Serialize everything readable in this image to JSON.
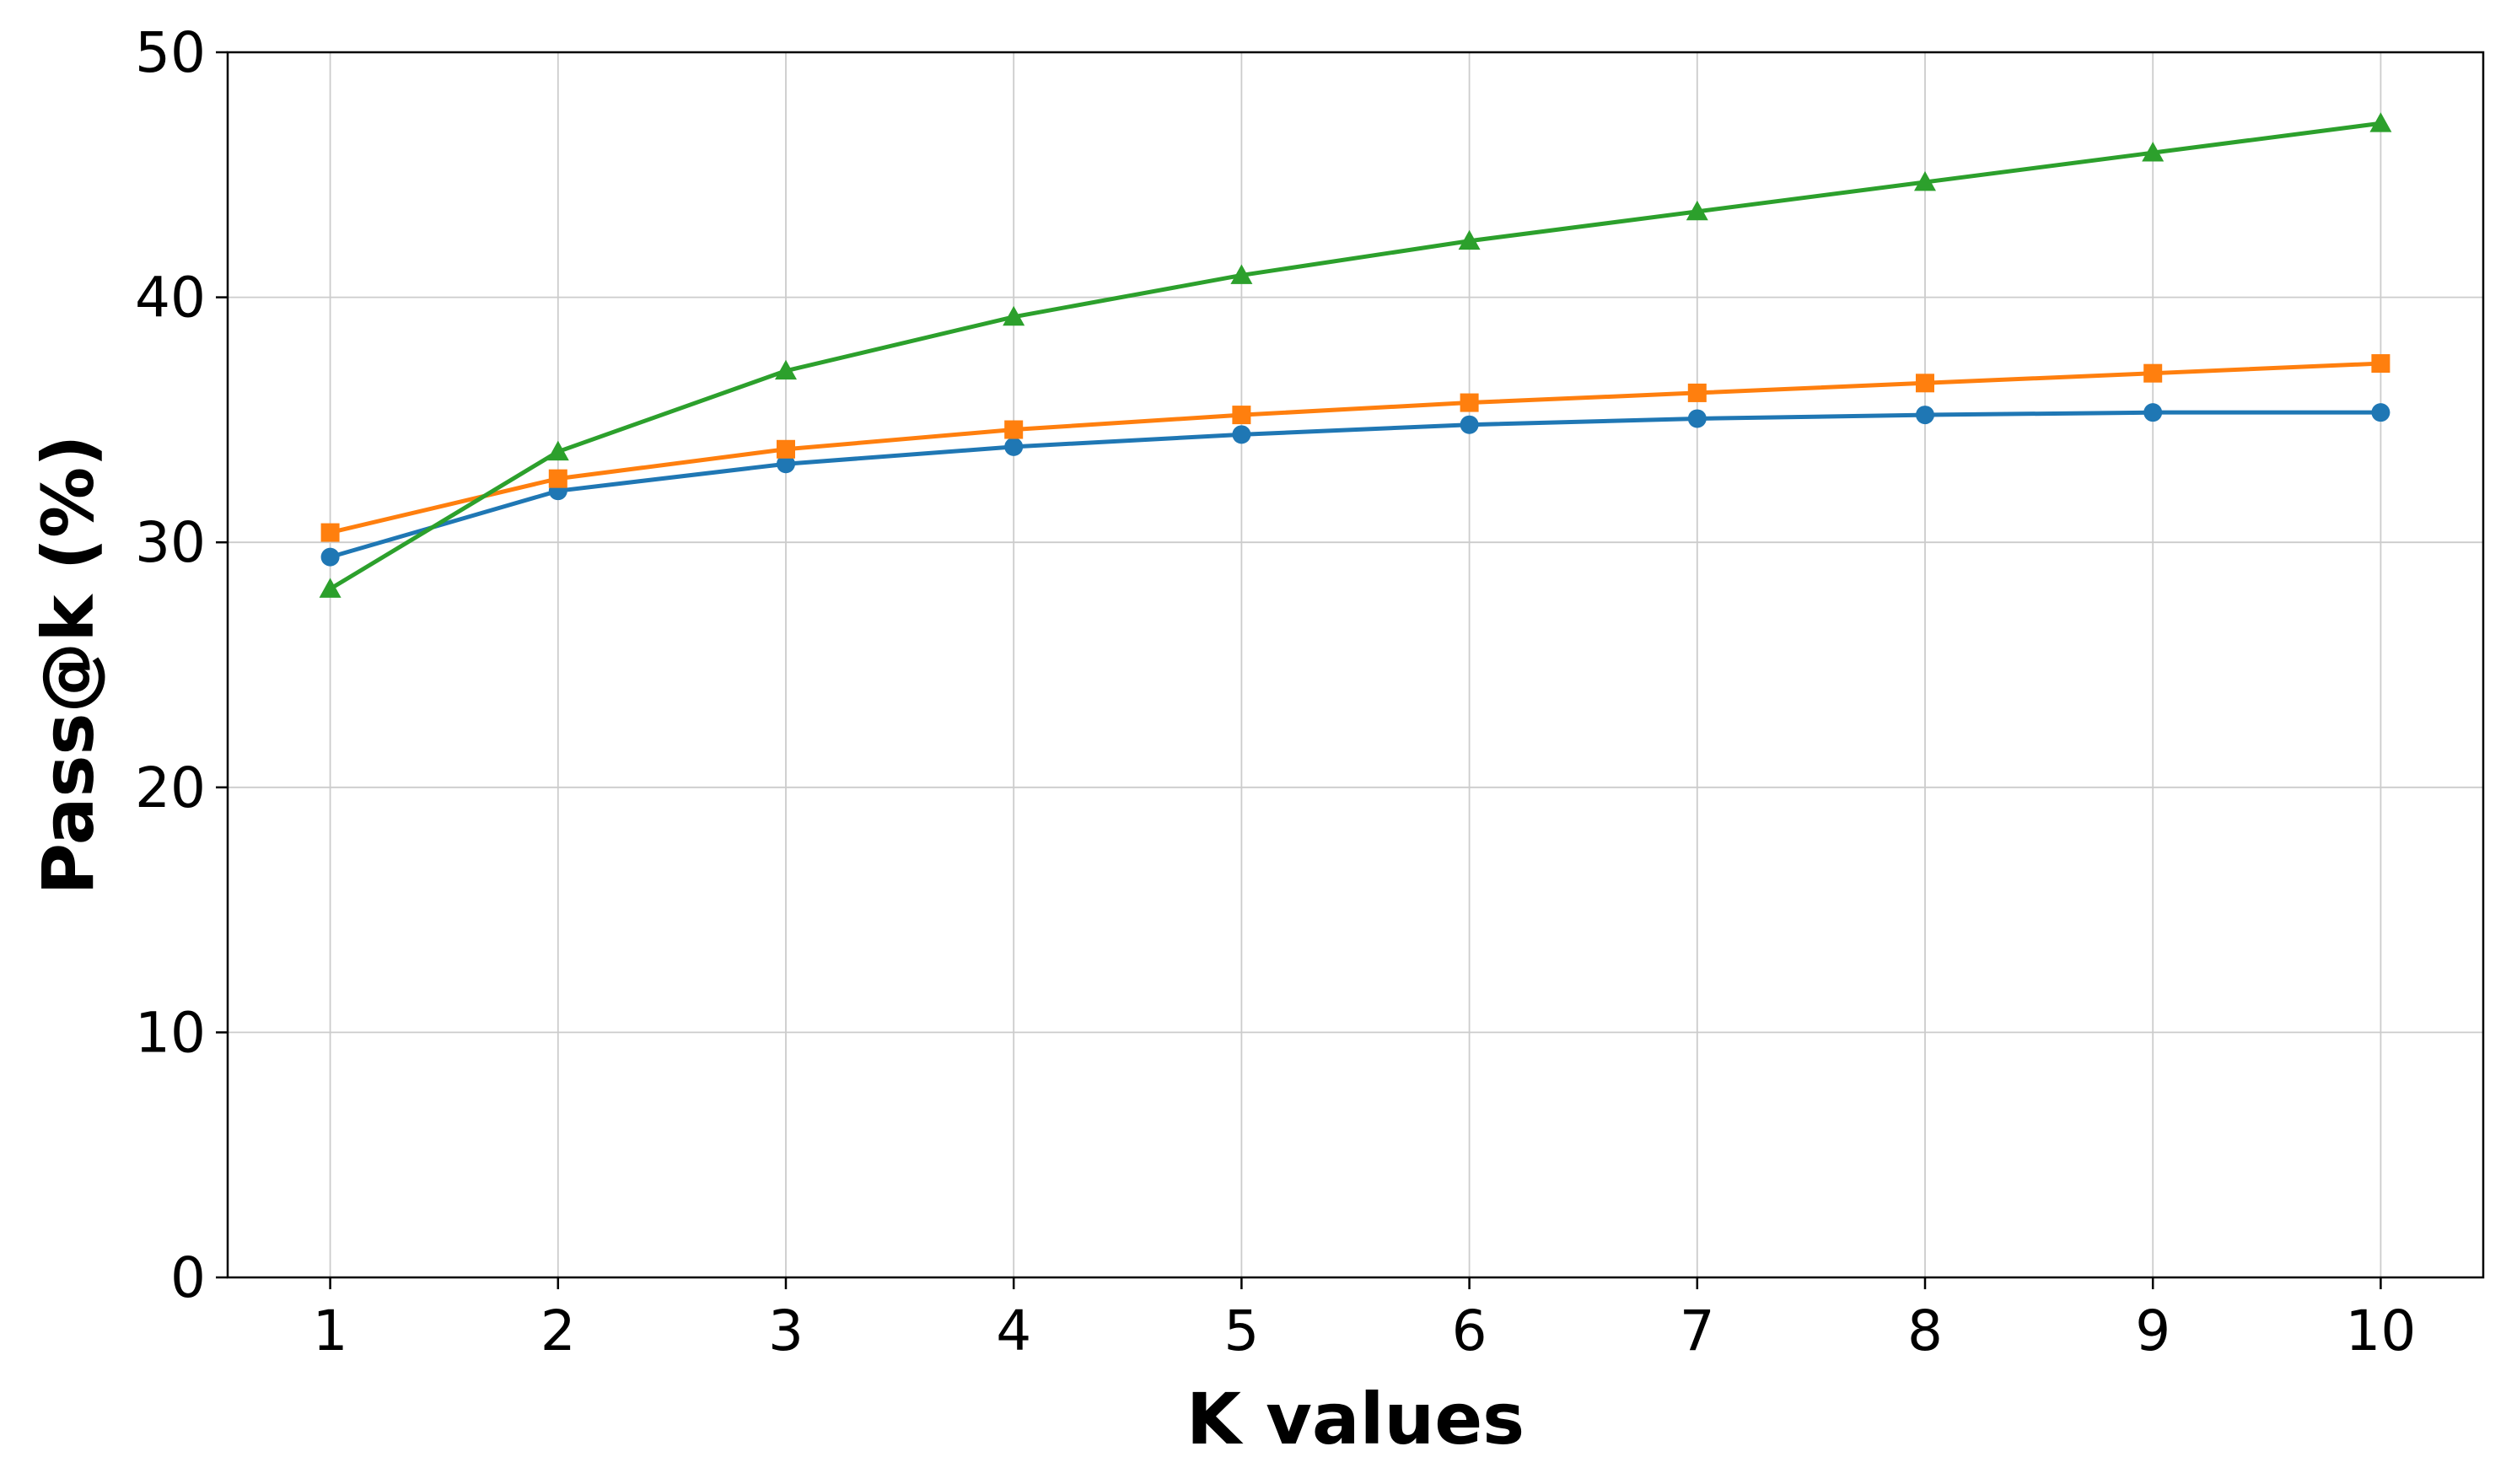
{
  "chart_data": {
    "type": "line",
    "title": "",
    "xlabel": "K values",
    "ylabel": "Pass@k (%)",
    "x": [
      1,
      2,
      3,
      4,
      5,
      6,
      7,
      8,
      9,
      10
    ],
    "xlim": [
      0.55,
      10.45
    ],
    "ylim": [
      0,
      50
    ],
    "yticks": [
      0,
      10,
      20,
      30,
      40,
      50
    ],
    "grid": true,
    "legend": "none",
    "series": [
      {
        "color": "#1f77b4",
        "marker": "circle",
        "values": [
          29.4,
          32.1,
          33.2,
          33.9,
          34.4,
          34.8,
          35.05,
          35.2,
          35.3,
          35.3
        ]
      },
      {
        "color": "#ff7f0e",
        "marker": "square",
        "values": [
          30.4,
          32.6,
          33.8,
          34.6,
          35.2,
          35.7,
          36.1,
          36.5,
          36.9,
          37.3
        ]
      },
      {
        "color": "#2ca02c",
        "marker": "triangle",
        "values": [
          28.1,
          33.7,
          37.0,
          39.2,
          40.9,
          42.3,
          43.5,
          44.7,
          45.9,
          47.1
        ]
      }
    ]
  }
}
